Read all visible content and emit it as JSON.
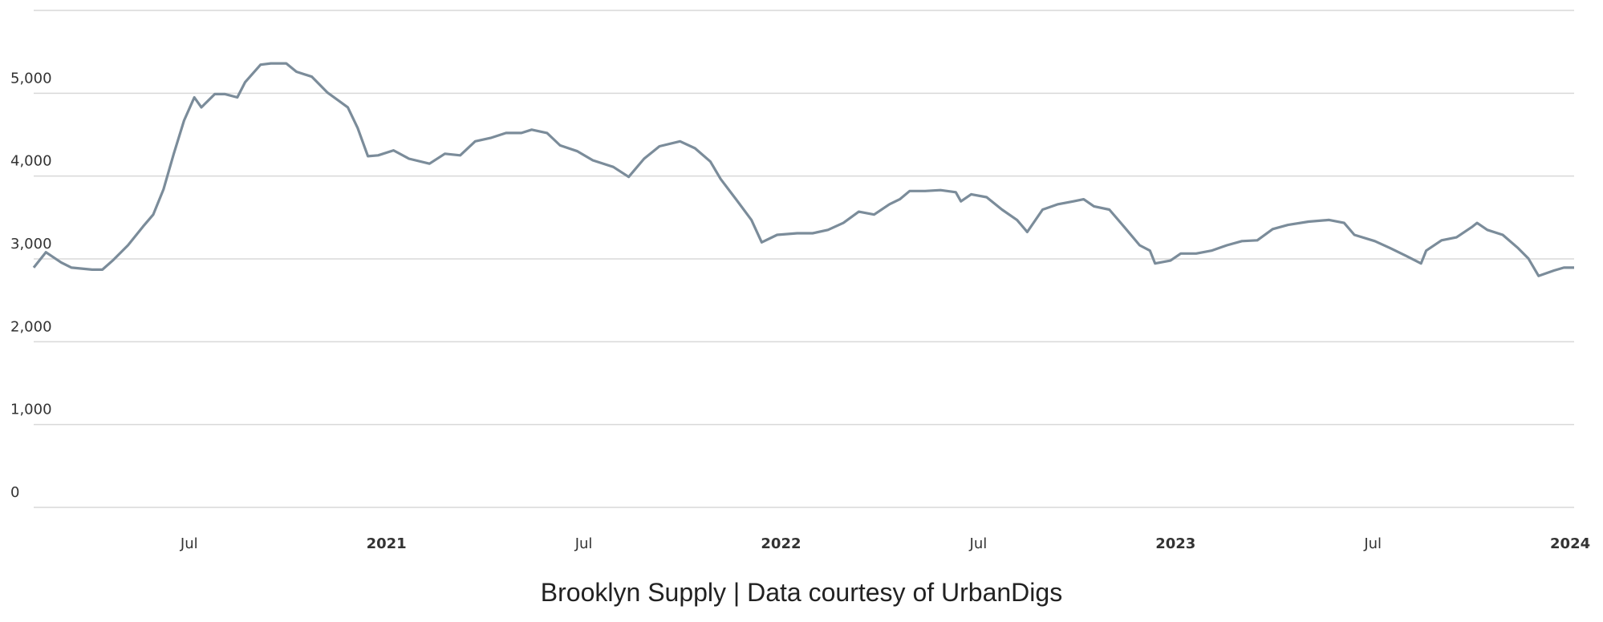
{
  "chart_data": {
    "type": "line",
    "caption": "Brooklyn Supply | Data courtesy of UrbanDigs",
    "x": [
      2020.106,
      2020.137,
      2020.176,
      2020.202,
      2020.254,
      2020.28,
      2020.306,
      2020.345,
      2020.383,
      2020.409,
      2020.435,
      2020.461,
      2020.487,
      2020.513,
      2020.531,
      2020.565,
      2020.591,
      2020.622,
      2020.642,
      2020.681,
      2020.707,
      2020.746,
      2020.772,
      2020.811,
      2020.85,
      2020.902,
      2020.927,
      2020.953,
      2020.979,
      2021.018,
      2021.057,
      2021.109,
      2021.148,
      2021.187,
      2021.225,
      2021.264,
      2021.303,
      2021.342,
      2021.368,
      2021.407,
      2021.44,
      2021.484,
      2021.523,
      2021.575,
      2021.614,
      2021.653,
      2021.692,
      2021.744,
      2021.782,
      2021.821,
      2021.847,
      2021.886,
      2021.925,
      2021.951,
      2021.99,
      2022.041,
      2022.08,
      2022.119,
      2022.158,
      2022.197,
      2022.236,
      2022.275,
      2022.301,
      2022.326,
      2022.365,
      2022.404,
      2022.443,
      2022.456,
      2022.482,
      2022.521,
      2022.56,
      2022.598,
      2022.624,
      2022.663,
      2022.702,
      2022.741,
      2022.767,
      2022.793,
      2022.832,
      2022.87,
      2022.909,
      2022.935,
      2022.948,
      2022.987,
      2023.013,
      2023.052,
      2023.091,
      2023.13,
      2023.168,
      2023.207,
      2023.246,
      2023.285,
      2023.337,
      2023.389,
      2023.427,
      2023.453,
      2023.505,
      2023.544,
      2023.583,
      2023.622,
      2023.635,
      2023.674,
      2023.712,
      2023.751,
      2023.764,
      2023.79,
      2023.829,
      2023.868,
      2023.894,
      2023.92,
      2023.959,
      2023.984,
      2024.01
    ],
    "series": [
      {
        "color": "#7b8c9a",
        "values": [
          2895,
          3080,
          2955,
          2895,
          2870,
          2870,
          2980,
          3165,
          3390,
          3535,
          3840,
          4270,
          4670,
          4950,
          4830,
          4990,
          4990,
          4950,
          5135,
          5345,
          5360,
          5360,
          5260,
          5200,
          5010,
          4830,
          4580,
          4240,
          4250,
          4310,
          4210,
          4150,
          4270,
          4250,
          4420,
          4460,
          4520,
          4520,
          4560,
          4520,
          4370,
          4300,
          4190,
          4110,
          3990,
          4210,
          4360,
          4420,
          4335,
          4175,
          3965,
          3720,
          3470,
          3200,
          3290,
          3310,
          3310,
          3350,
          3435,
          3570,
          3535,
          3660,
          3720,
          3820,
          3820,
          3830,
          3805,
          3695,
          3780,
          3745,
          3595,
          3470,
          3325,
          3595,
          3660,
          3695,
          3720,
          3635,
          3595,
          3385,
          3165,
          3100,
          2945,
          2980,
          3065,
          3065,
          3100,
          3165,
          3215,
          3225,
          3360,
          3410,
          3450,
          3470,
          3435,
          3290,
          3215,
          3130,
          3040,
          2945,
          3100,
          3225,
          3260,
          3385,
          3435,
          3350,
          3290,
          3130,
          3005,
          2795,
          2860,
          2895,
          2895
        ]
      }
    ],
    "xlim": [
      2020.106,
      2024.01
    ],
    "ylim": [
      0,
      6000
    ],
    "yticks": [
      0,
      {
        "value": 1000,
        "label": "1,000"
      },
      {
        "value": 2000,
        "label": "2,000"
      },
      {
        "value": 3000,
        "label": "3,000"
      },
      {
        "value": 4000,
        "label": "4,000"
      },
      {
        "value": 5000,
        "label": "5,000"
      }
    ],
    "xticks": [
      {
        "value": 2020.5,
        "label": "Jul"
      },
      2021,
      {
        "value": 2021.5,
        "label": "Jul"
      },
      2022,
      {
        "value": 2022.5,
        "label": "Jul"
      },
      2023,
      {
        "value": 2023.5,
        "label": "Jul"
      },
      2024
    ],
    "grid": true
  }
}
